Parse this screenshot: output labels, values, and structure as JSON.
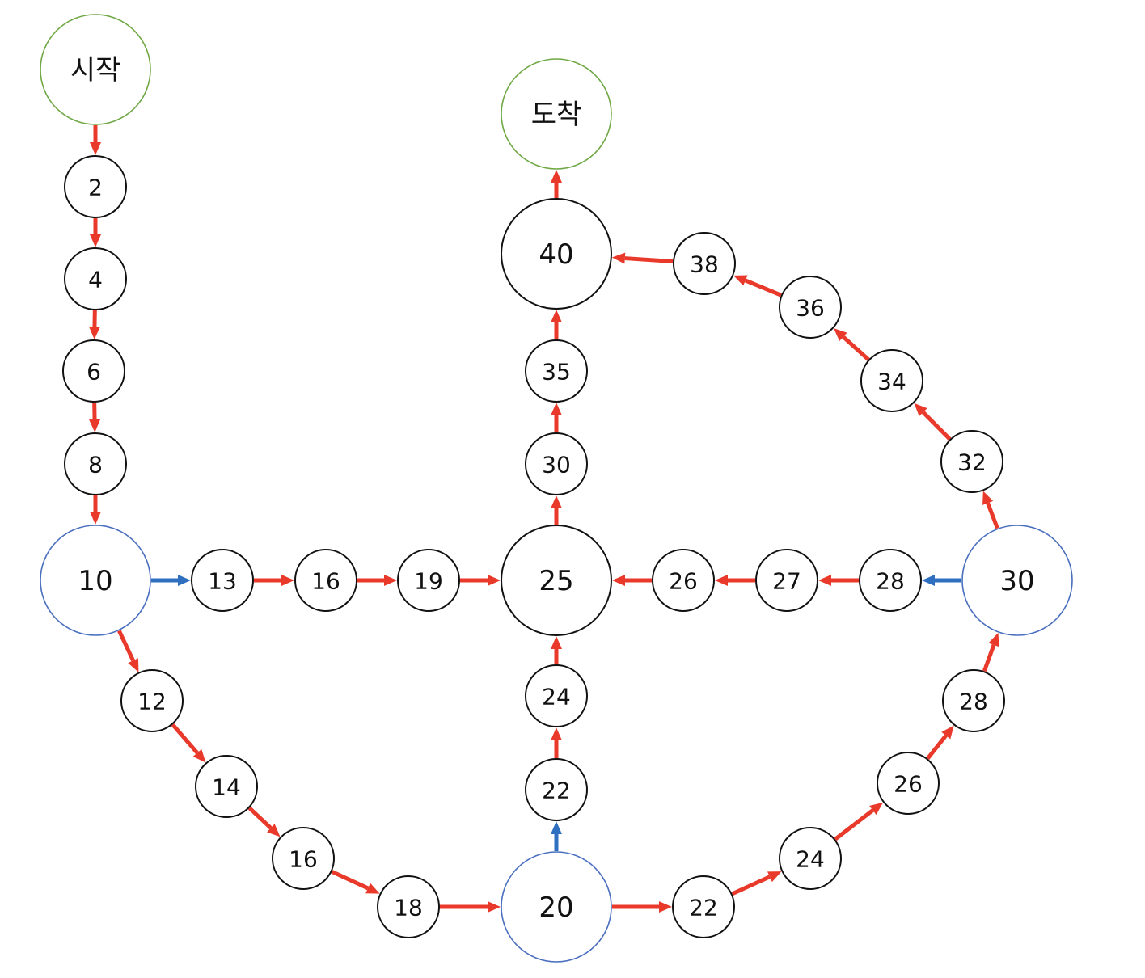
{
  "diagram": {
    "nodes": [
      {
        "id": "start",
        "label": "시작",
        "kind": "endpoint"
      },
      {
        "id": "a2",
        "label": "2",
        "kind": "small"
      },
      {
        "id": "a4",
        "label": "4",
        "kind": "small"
      },
      {
        "id": "a6",
        "label": "6",
        "kind": "small"
      },
      {
        "id": "a8",
        "label": "8",
        "kind": "small"
      },
      {
        "id": "b10",
        "label": "10",
        "kind": "branch"
      },
      {
        "id": "c13",
        "label": "13",
        "kind": "small"
      },
      {
        "id": "c16",
        "label": "16",
        "kind": "small"
      },
      {
        "id": "c19",
        "label": "19",
        "kind": "small"
      },
      {
        "id": "m25",
        "label": "25",
        "kind": "hub"
      },
      {
        "id": "d12",
        "label": "12",
        "kind": "small"
      },
      {
        "id": "d14",
        "label": "14",
        "kind": "small"
      },
      {
        "id": "d16",
        "label": "16",
        "kind": "small"
      },
      {
        "id": "d18",
        "label": "18",
        "kind": "small"
      },
      {
        "id": "b20",
        "label": "20",
        "kind": "branch"
      },
      {
        "id": "e22",
        "label": "22",
        "kind": "small"
      },
      {
        "id": "e24",
        "label": "24",
        "kind": "small"
      },
      {
        "id": "f22",
        "label": "22",
        "kind": "small"
      },
      {
        "id": "f24",
        "label": "24",
        "kind": "small"
      },
      {
        "id": "f26",
        "label": "26",
        "kind": "small"
      },
      {
        "id": "f28",
        "label": "28",
        "kind": "small"
      },
      {
        "id": "b30",
        "label": "30",
        "kind": "branch"
      },
      {
        "id": "g28",
        "label": "28",
        "kind": "small"
      },
      {
        "id": "g27",
        "label": "27",
        "kind": "small"
      },
      {
        "id": "g26",
        "label": "26",
        "kind": "small"
      },
      {
        "id": "h32",
        "label": "32",
        "kind": "small"
      },
      {
        "id": "h34",
        "label": "34",
        "kind": "small"
      },
      {
        "id": "h36",
        "label": "36",
        "kind": "small"
      },
      {
        "id": "h38",
        "label": "38",
        "kind": "small"
      },
      {
        "id": "i30",
        "label": "30",
        "kind": "small"
      },
      {
        "id": "i35",
        "label": "35",
        "kind": "small"
      },
      {
        "id": "m40",
        "label": "40",
        "kind": "hub"
      },
      {
        "id": "finish",
        "label": "도착",
        "kind": "endpoint"
      }
    ],
    "edges": [
      {
        "from": "start",
        "to": "a2",
        "type": "normal"
      },
      {
        "from": "a2",
        "to": "a4",
        "type": "normal"
      },
      {
        "from": "a4",
        "to": "a6",
        "type": "normal"
      },
      {
        "from": "a6",
        "to": "a8",
        "type": "normal"
      },
      {
        "from": "a8",
        "to": "b10",
        "type": "normal"
      },
      {
        "from": "b10",
        "to": "c13",
        "type": "shortcut"
      },
      {
        "from": "c13",
        "to": "c16",
        "type": "normal"
      },
      {
        "from": "c16",
        "to": "c19",
        "type": "normal"
      },
      {
        "from": "c19",
        "to": "m25",
        "type": "normal"
      },
      {
        "from": "b10",
        "to": "d12",
        "type": "normal"
      },
      {
        "from": "d12",
        "to": "d14",
        "type": "normal"
      },
      {
        "from": "d14",
        "to": "d16",
        "type": "normal"
      },
      {
        "from": "d16",
        "to": "d18",
        "type": "normal"
      },
      {
        "from": "d18",
        "to": "b20",
        "type": "normal"
      },
      {
        "from": "b20",
        "to": "e22",
        "type": "shortcut"
      },
      {
        "from": "e22",
        "to": "e24",
        "type": "normal"
      },
      {
        "from": "e24",
        "to": "m25",
        "type": "normal"
      },
      {
        "from": "b20",
        "to": "f22",
        "type": "normal"
      },
      {
        "from": "f22",
        "to": "f24",
        "type": "normal"
      },
      {
        "from": "f24",
        "to": "f26",
        "type": "normal"
      },
      {
        "from": "f26",
        "to": "f28",
        "type": "normal"
      },
      {
        "from": "f28",
        "to": "b30",
        "type": "normal"
      },
      {
        "from": "b30",
        "to": "g28",
        "type": "shortcut"
      },
      {
        "from": "g28",
        "to": "g27",
        "type": "normal"
      },
      {
        "from": "g27",
        "to": "g26",
        "type": "normal"
      },
      {
        "from": "g26",
        "to": "m25",
        "type": "normal"
      },
      {
        "from": "b30",
        "to": "h32",
        "type": "normal"
      },
      {
        "from": "h32",
        "to": "h34",
        "type": "normal"
      },
      {
        "from": "h34",
        "to": "h36",
        "type": "normal"
      },
      {
        "from": "h36",
        "to": "h38",
        "type": "normal"
      },
      {
        "from": "h38",
        "to": "m40",
        "type": "normal"
      },
      {
        "from": "m25",
        "to": "i30",
        "type": "normal"
      },
      {
        "from": "i30",
        "to": "i35",
        "type": "normal"
      },
      {
        "from": "i35",
        "to": "m40",
        "type": "normal"
      },
      {
        "from": "m40",
        "to": "finish",
        "type": "normal"
      }
    ]
  },
  "colors": {
    "normal_edge": "#e8392b",
    "shortcut_edge": "#2f6fc0",
    "endpoint_stroke": "#70a845",
    "branch_stroke": "#4a6fbf",
    "node_stroke": "#111111",
    "label": "#111111"
  }
}
